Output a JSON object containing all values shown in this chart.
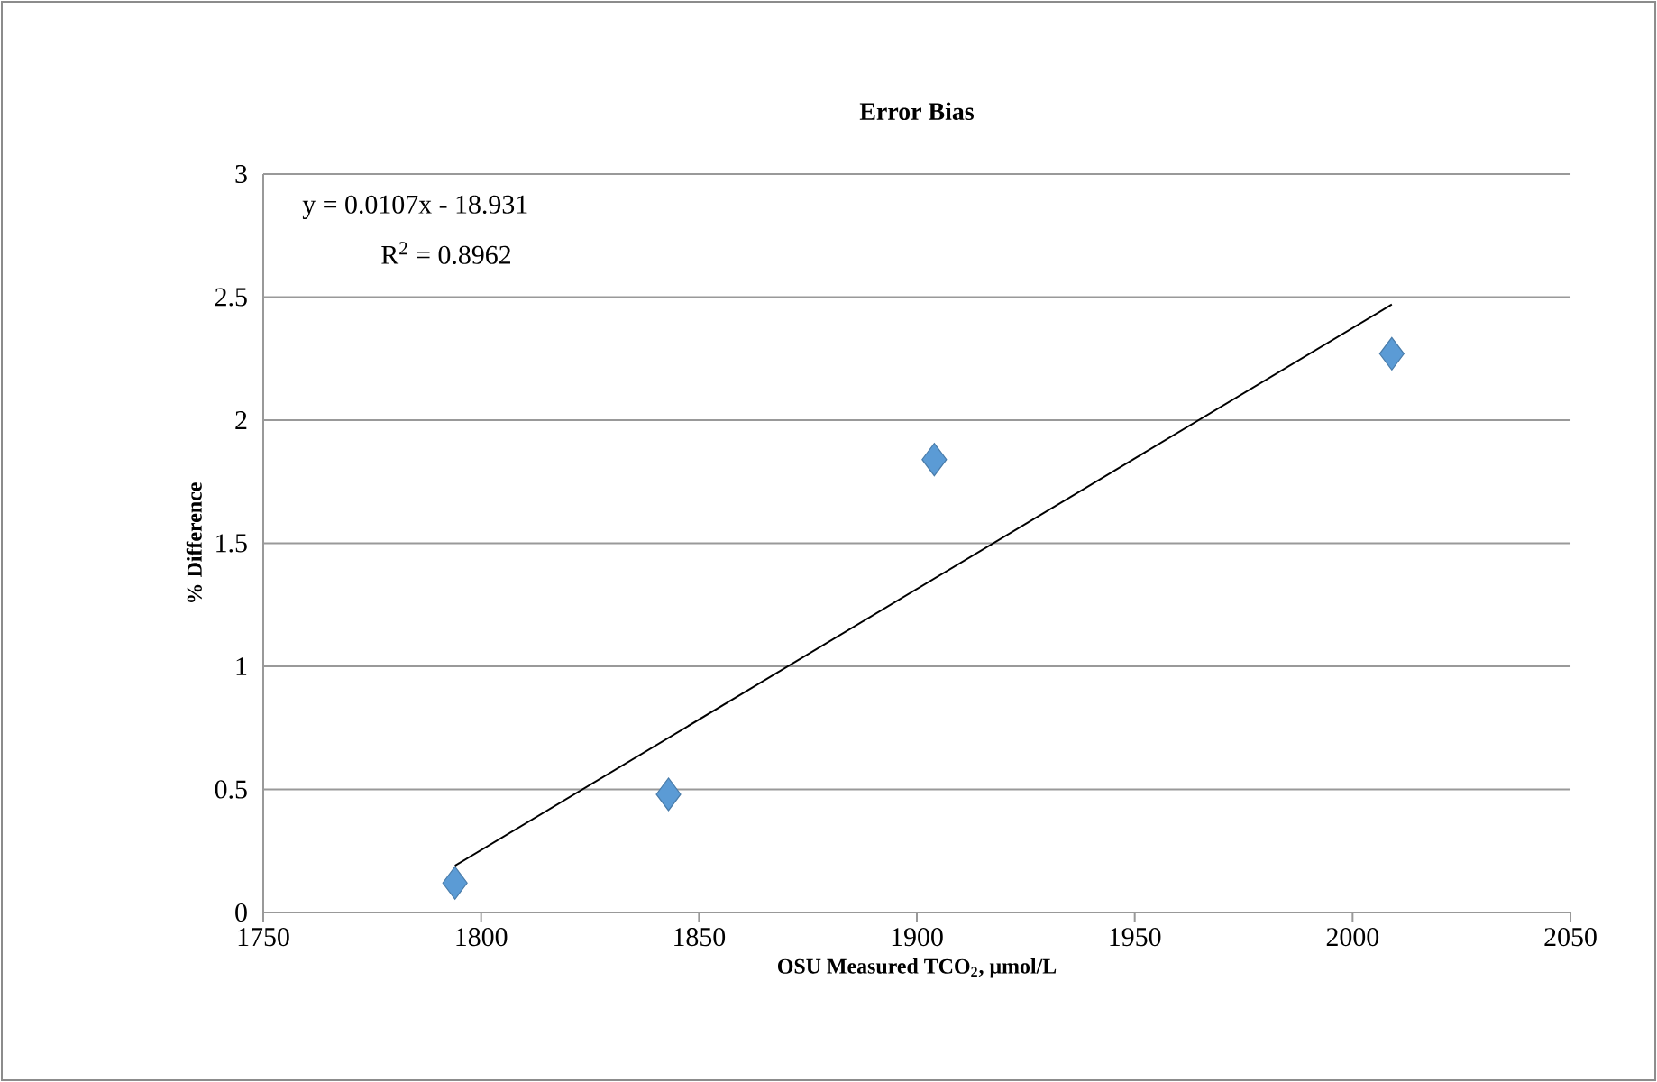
{
  "chart_data": {
    "type": "scatter",
    "title": "Error Bias",
    "xlabel": "OSU Measured TCO$_{2}$, μmol/L",
    "ylabel": "% Difference",
    "annotations": [
      "y = 0.0107x - 18.931",
      "R$^{2}$ = 0.8962"
    ],
    "xlim": [
      1750,
      2050
    ],
    "xticks": [
      1750,
      1800,
      1850,
      1900,
      1950,
      2000,
      2050
    ],
    "ylim": [
      0,
      3
    ],
    "yticks": [
      0,
      0.5,
      1,
      1.5,
      2,
      2.5,
      3
    ],
    "grid": "y",
    "marker": "diamond",
    "series": [
      {
        "color": "#5b9bd5",
        "x": [
          1794,
          1843,
          1904,
          2009
        ],
        "values": [
          0.12,
          0.48,
          1.84,
          2.27
        ]
      },
      {
        "type": "line",
        "color": "#000000",
        "marker": "none",
        "x": [
          1794,
          2009
        ],
        "values": [
          0.19,
          2.47
        ]
      }
    ]
  }
}
